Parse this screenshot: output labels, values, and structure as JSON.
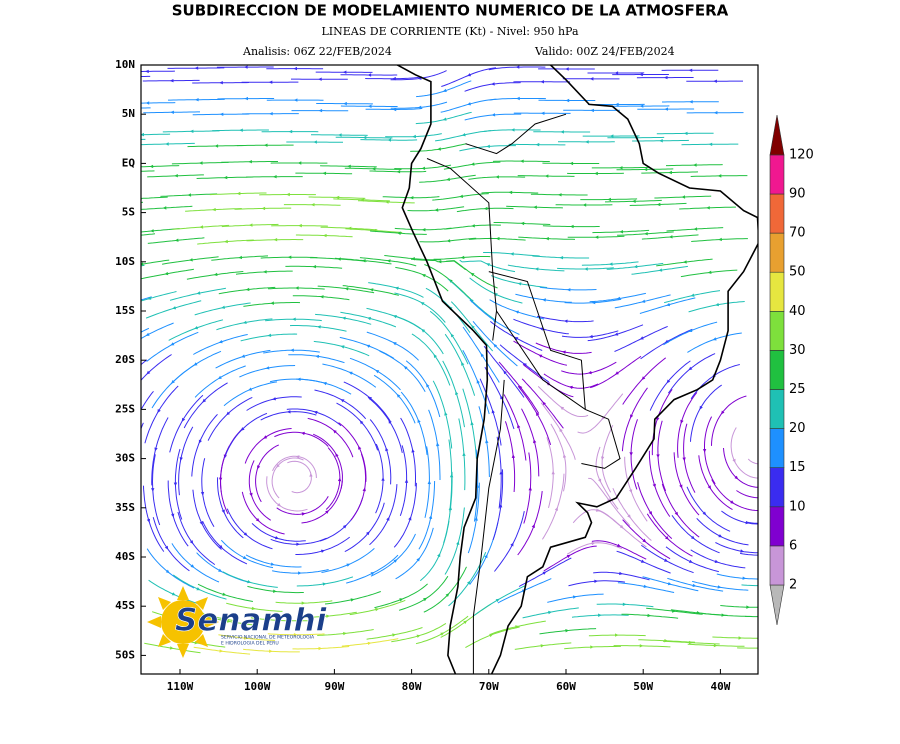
{
  "header": {
    "title": "SUBDIRECCION DE MODELAMIENTO NUMERICO DE LA ATMOSFERA",
    "subtitle": "LINEAS DE CORRIENTE (Kt) - Nivel: 950 hPa",
    "analysis": "Analisis: 06Z 22/FEB/2024",
    "valid": "Valido: 00Z 24/FEB/2024"
  },
  "map": {
    "lat_labels": [
      "10N",
      "5N",
      "EQ",
      "5S",
      "10S",
      "15S",
      "20S",
      "25S",
      "30S",
      "35S",
      "40S",
      "45S",
      "50S"
    ],
    "lon_labels": [
      "110W",
      "100W",
      "90W",
      "80W",
      "70W",
      "60W",
      "50W",
      "40W"
    ]
  },
  "legend": {
    "levels": [
      2,
      6,
      10,
      15,
      20,
      25,
      30,
      40,
      50,
      70,
      90,
      120
    ],
    "colors": [
      "#b8b8b8",
      "#c896d8",
      "#8000d0",
      "#3a2cf0",
      "#1e90ff",
      "#1fc0b4",
      "#20c040",
      "#7ee03c",
      "#e6e640",
      "#e8a030",
      "#f06838",
      "#f01890",
      "#800000"
    ]
  },
  "logo": {
    "name": "Senamhi",
    "tagline1": "SERVICIO NACIONAL DE METEOROLOGIA",
    "tagline2": "E HIDROLOGIA DEL PERU"
  }
}
